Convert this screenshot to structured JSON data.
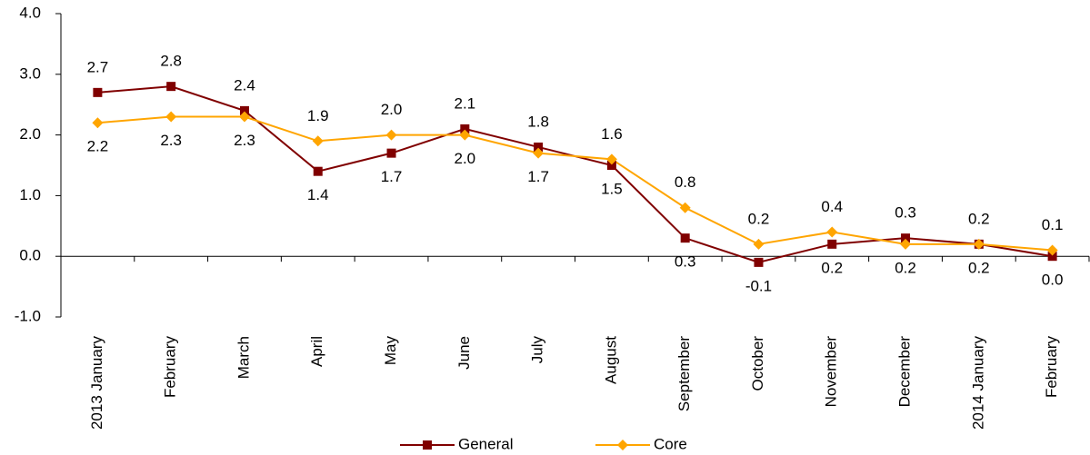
{
  "chart_data": {
    "type": "line",
    "categories": [
      "2013 January",
      "February",
      "March",
      "April",
      "May",
      "June",
      "July",
      "August",
      "September",
      "October",
      "November",
      "December",
      "2014 January",
      "February"
    ],
    "series": [
      {
        "name": "General",
        "color": "#800000",
        "marker": "square",
        "values": [
          2.7,
          2.8,
          2.4,
          1.4,
          1.7,
          2.1,
          1.8,
          1.5,
          0.3,
          -0.1,
          0.2,
          0.3,
          0.2,
          0.0
        ],
        "value_labels": [
          "2.7",
          "2.8",
          "2.4",
          "1.4",
          "1.7",
          "2.1",
          "1.8",
          "1.5",
          "0.3",
          "-0.1",
          "0.2",
          "0.3",
          "0.2",
          "0.0"
        ]
      },
      {
        "name": "Core",
        "color": "#ffa500",
        "marker": "diamond",
        "values": [
          2.2,
          2.3,
          2.3,
          1.9,
          2.0,
          2.0,
          1.7,
          1.6,
          0.8,
          0.2,
          0.4,
          0.2,
          0.2,
          0.1
        ],
        "value_labels": [
          "2.2",
          "2.3",
          "2.3",
          "1.9",
          "2.0",
          "2.0",
          "1.7",
          "1.6",
          "0.8",
          "0.2",
          "0.4",
          "0.2",
          "0.2",
          "0.1"
        ]
      }
    ],
    "ylim": [
      -1,
      4
    ],
    "yticks": [
      {
        "value": -1,
        "label": "-1.0"
      },
      {
        "value": 0,
        "label": "0.0"
      },
      {
        "value": 1,
        "label": "1.0"
      },
      {
        "value": 2,
        "label": "2.0"
      },
      {
        "value": 3,
        "label": "3.0"
      },
      {
        "value": 4,
        "label": "4.0"
      }
    ],
    "legend": "bottom"
  }
}
